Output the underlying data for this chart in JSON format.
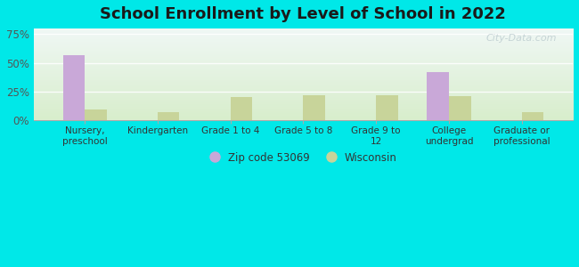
{
  "title": "School Enrollment by Level of School in 2022",
  "categories": [
    "Nursery,\npreschool",
    "Kindergarten",
    "Grade 1 to 4",
    "Grade 5 to 8",
    "Grade 9 to\n12",
    "College\nundergrad",
    "Graduate or\nprofessional"
  ],
  "zip_values": [
    57,
    0,
    0,
    0,
    0,
    42,
    0
  ],
  "wi_values": [
    9,
    7,
    20,
    22,
    22,
    21,
    7
  ],
  "zip_color": "#c9a8d8",
  "wi_color": "#c8d49a",
  "background_outer": "#00e8e8",
  "background_top": "#f0f8f4",
  "background_bottom": "#d8eecc",
  "title_fontsize": 13,
  "ylabel_ticks": [
    "0%",
    "25%",
    "50%",
    "75%"
  ],
  "ytick_vals": [
    0,
    25,
    50,
    75
  ],
  "ylim": [
    0,
    80
  ],
  "legend_zip_label": "Zip code 53069",
  "legend_wi_label": "Wisconsin",
  "bar_width": 0.3,
  "watermark": "City-Data.com"
}
